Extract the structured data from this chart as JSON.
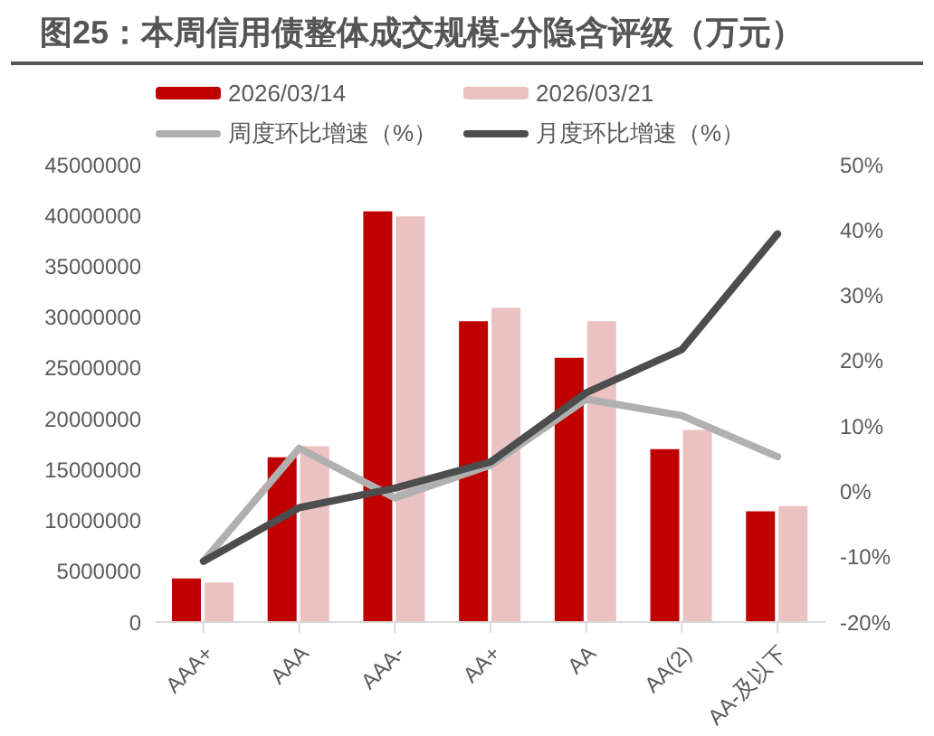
{
  "chart_data": {
    "type": "bar",
    "title": "图25：本周信用债整体成交规模-分隐含评级（万元）",
    "categories": [
      "AAA+",
      "AAA",
      "AAA-",
      "AA+",
      "AA",
      "AA(2)",
      "AA-及以下"
    ],
    "series": [
      {
        "name": "2026/03/14",
        "color": "#c00000",
        "values": [
          4300000,
          16200000,
          40400000,
          29600000,
          26000000,
          17000000,
          10900000
        ]
      },
      {
        "name": "2026/03/21",
        "color": "#ebc1c1",
        "values": [
          3900000,
          17300000,
          39900000,
          30900000,
          29600000,
          18900000,
          11400000
        ]
      },
      {
        "name": "周度环比增速（%）",
        "type": "line",
        "axis": "y2",
        "color": "#b0b0b0",
        "values": [
          -10.7,
          6.6,
          -1.0,
          4.0,
          14.1,
          11.6,
          5.3
        ]
      },
      {
        "name": "月度环比增速（%）",
        "type": "line",
        "axis": "y2",
        "color": "#4d4d4d",
        "values": [
          -10.7,
          -2.5,
          0.5,
          4.5,
          15.1,
          21.7,
          39.4
        ]
      }
    ],
    "ylim": [
      0,
      45000000
    ],
    "yticks": [
      0,
      5000000,
      10000000,
      15000000,
      20000000,
      25000000,
      30000000,
      35000000,
      40000000,
      45000000
    ],
    "y2lim": [
      -20,
      50
    ],
    "y2ticks": [
      {
        "value": -20,
        "label": "-20%"
      },
      {
        "value": -10,
        "label": "-10%"
      },
      {
        "value": 0,
        "label": "0%"
      },
      {
        "value": 10,
        "label": "10%"
      },
      {
        "value": 20,
        "label": "20%"
      },
      {
        "value": 30,
        "label": "30%"
      },
      {
        "value": 40,
        "label": "40%"
      },
      {
        "value": 50,
        "label": "50%"
      }
    ],
    "legend": "top",
    "grid": false,
    "marker": "none",
    "line_style": "solid"
  }
}
